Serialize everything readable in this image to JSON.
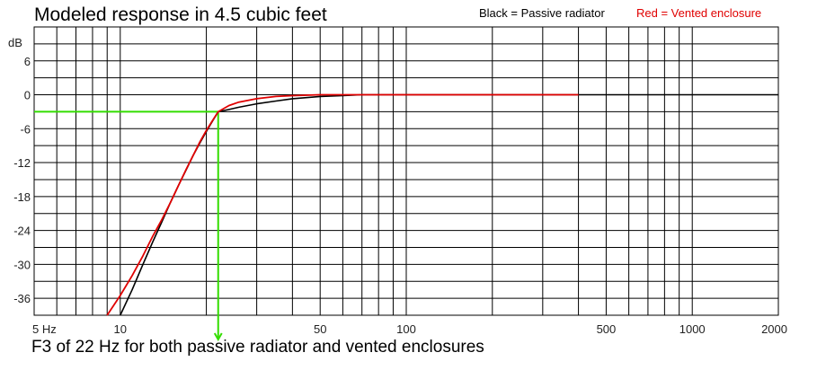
{
  "chart_data": {
    "type": "line",
    "title": "Modeled response in 4.5 cubic feet",
    "legend": [
      {
        "label": "Black = Passive radiator",
        "color": "#000000"
      },
      {
        "label": "Red = Vented enclosure",
        "color": "#e00000"
      }
    ],
    "ylabel": "dB",
    "y_ticks": [
      6,
      0,
      -6,
      -12,
      -18,
      -24,
      -30,
      -36
    ],
    "ylim": [
      -39,
      12
    ],
    "x_scale": "log",
    "xlim": [
      5,
      2000
    ],
    "x_tick_labels": [
      {
        "value": 5,
        "label": "5 Hz"
      },
      {
        "value": 10,
        "label": "10"
      },
      {
        "value": 50,
        "label": "50"
      },
      {
        "value": 100,
        "label": "100"
      },
      {
        "value": 500,
        "label": "500"
      },
      {
        "value": 1000,
        "label": "1000"
      },
      {
        "value": 2000,
        "label": "2000"
      }
    ],
    "grid": true,
    "series": [
      {
        "name": "Passive radiator",
        "color": "#000000",
        "x": [
          10,
          11,
          12,
          13,
          14,
          15,
          16,
          17,
          18,
          19,
          20,
          21,
          22,
          24,
          26,
          30,
          35,
          40,
          50,
          60,
          70,
          100,
          200,
          400,
          2000
        ],
        "y": [
          -39,
          -34.5,
          -30,
          -26,
          -22.4,
          -19,
          -16,
          -13.3,
          -10.7,
          -8.5,
          -6.5,
          -4.7,
          -3,
          -2.6,
          -2.2,
          -1.6,
          -1.1,
          -0.7,
          -0.3,
          -0.15,
          0,
          0,
          0,
          0,
          0
        ]
      },
      {
        "name": "Vented enclosure",
        "color": "#e00000",
        "x": [
          9,
          10,
          11,
          12,
          13,
          14,
          15,
          16,
          17,
          18,
          19,
          20,
          21,
          22,
          24,
          26,
          30,
          35,
          40,
          50,
          60,
          100,
          200,
          400
        ],
        "y": [
          -39,
          -35.5,
          -32,
          -28.5,
          -25,
          -22,
          -19,
          -16,
          -13.2,
          -10.7,
          -8.3,
          -6.3,
          -4.6,
          -3,
          -1.9,
          -1.3,
          -0.7,
          -0.3,
          -0.15,
          0,
          0,
          0,
          0,
          0
        ]
      }
    ],
    "annotation": {
      "label": "F3 of 22 Hz for both passive radiator and vented enclosures",
      "x": 22,
      "y": -3,
      "color": "#33dd00"
    }
  }
}
